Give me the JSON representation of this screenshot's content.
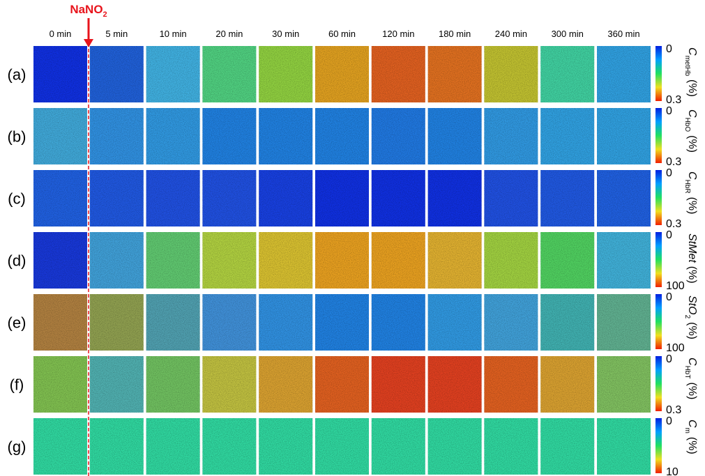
{
  "annotation": {
    "text": "NaNO",
    "sub": "2",
    "color": "#e8141c"
  },
  "columns": [
    "0 min",
    "5 min",
    "10 min",
    "20 min",
    "30 min",
    "60 min",
    "120 min",
    "180 min",
    "240 min",
    "300 min",
    "360 min"
  ],
  "rows": [
    {
      "label": "(a)",
      "colorbar": {
        "min": 0,
        "max": 0.3
      },
      "quantity": {
        "symbol": "C",
        "sub": "metHb",
        "unit": "(%)"
      },
      "tile_colors": [
        "#1030e0",
        "#2060d8",
        "#40b0e0",
        "#50d080",
        "#90d040",
        "#e0a020",
        "#e06020",
        "#e07020",
        "#c0c030",
        "#40d0a0",
        "#30a0e0"
      ]
    },
    {
      "label": "(b)",
      "colorbar": {
        "min": 0,
        "max": 0.3
      },
      "quantity": {
        "symbol": "C",
        "sub": "HbO",
        "unit": "(%)"
      },
      "tile_colors": [
        "#40a8d8",
        "#3090e0",
        "#3098e0",
        "#2080e0",
        "#2080e0",
        "#2080e0",
        "#2078e0",
        "#2080e0",
        "#3098e0",
        "#30a0e0",
        "#30a0e0"
      ]
    },
    {
      "label": "(c)",
      "colorbar": {
        "min": 0,
        "max": 0.3
      },
      "quantity": {
        "symbol": "C",
        "sub": "HbR",
        "unit": "(%)"
      },
      "tile_colors": [
        "#2060e0",
        "#2058e0",
        "#2050e0",
        "#2050e0",
        "#1840e0",
        "#1030e0",
        "#1030e0",
        "#1030e0",
        "#2050e0",
        "#2058e0",
        "#2060e0"
      ]
    },
    {
      "label": "(d)",
      "colorbar": {
        "min": 0,
        "max": 100
      },
      "quantity": {
        "symbol": "StMet",
        "unit": "(%)"
      },
      "tile_colors": [
        "#1838d8",
        "#40a0d8",
        "#60c870",
        "#b0d040",
        "#d8c030",
        "#e8a020",
        "#e8a020",
        "#e0b030",
        "#a0d040",
        "#50d060",
        "#40b0d8"
      ]
    },
    {
      "label": "(e)",
      "colorbar": {
        "min": 0,
        "max": 100
      },
      "quantity": {
        "symbol": "StO",
        "sub": "2",
        "unit": "(%)"
      },
      "tile_colors": [
        "#b08040",
        "#90a050",
        "#50a0b0",
        "#4090d8",
        "#3090e0",
        "#2080e0",
        "#2080e0",
        "#3098e0",
        "#40a0d8",
        "#40b0b0",
        "#60b090"
      ]
    },
    {
      "label": "(f)",
      "colorbar": {
        "min": 0,
        "max": 0.3
      },
      "quantity": {
        "symbol": "C",
        "sub": "HbT",
        "unit": "(%)"
      },
      "tile_colors": [
        "#80c050",
        "#50b0b0",
        "#70c060",
        "#c0c040",
        "#d8a030",
        "#e06020",
        "#e04020",
        "#e04020",
        "#e06020",
        "#d8a030",
        "#80c060"
      ]
    },
    {
      "label": "(g)",
      "colorbar": {
        "min": 0,
        "max": 10
      },
      "quantity": {
        "symbol": "C",
        "sub": "m",
        "unit": "(%)"
      },
      "tile_colors": [
        "#30d8a0",
        "#30d8a0",
        "#30d8a0",
        "#30d8a0",
        "#30d8a0",
        "#30d8a0",
        "#30d8a0",
        "#30d8a0",
        "#30d8a0",
        "#30d8a0",
        "#30d8a0"
      ]
    }
  ]
}
